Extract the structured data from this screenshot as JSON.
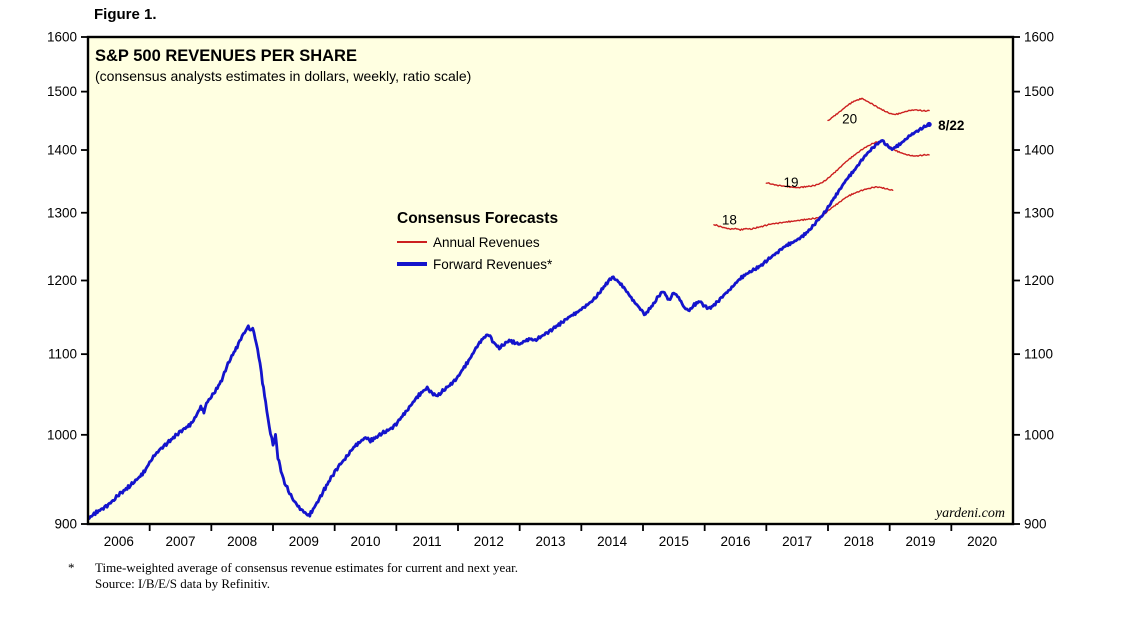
{
  "figure": {
    "label": "Figure 1."
  },
  "chart": {
    "title": "S&P 500 REVENUES PER SHARE",
    "subtitle": "(consensus analysts estimates in dollars, weekly, ratio scale)",
    "watermark": "yardeni.com",
    "legend": {
      "heading": "Consensus Forecasts",
      "items": [
        {
          "label": "Annual Revenues",
          "color": "#CC2020"
        },
        {
          "label": "Forward Revenues*",
          "color": "#1414CC"
        }
      ]
    },
    "colors": {
      "plot_background": "#FFFFE1",
      "border": "#000000",
      "axis_text": "#000000",
      "red": "#CC2020",
      "blue": "#1414CC"
    }
  },
  "chart_data": {
    "type": "line",
    "x_axis": {
      "unit": "decimal_year",
      "start": 2006,
      "end": 2021,
      "year_labels": [
        "2006",
        "2007",
        "2008",
        "2009",
        "2010",
        "2011",
        "2012",
        "2013",
        "2014",
        "2015",
        "2016",
        "2017",
        "2018",
        "2019",
        "2020"
      ]
    },
    "y_axis": {
      "min": 900,
      "max": 1600,
      "tick_step": 100,
      "scale": "ratio (log)",
      "sides": "both"
    },
    "annotations": [
      {
        "text": "18",
        "t": 2016.4,
        "v": 1289,
        "color": "#CC2020",
        "anchor": "middle",
        "bold": false
      },
      {
        "text": "19",
        "t": 2017.4,
        "v": 1347,
        "color": "#CC2020",
        "anchor": "middle",
        "bold": false
      },
      {
        "text": "20",
        "t": 2018.35,
        "v": 1452,
        "color": "#CC2020",
        "anchor": "middle",
        "bold": false
      },
      {
        "text": "8/22",
        "t": 2019.72,
        "v": 1441,
        "color": "#1414CC",
        "anchor": "start",
        "bold": true,
        "dx": 4
      }
    ],
    "series": [
      {
        "name": "Annual Revenues 2018 estimate",
        "color": "#CC2020",
        "width": 1.4,
        "points": [
          [
            2016.15,
            1282
          ],
          [
            2016.25,
            1279
          ],
          [
            2016.33,
            1277
          ],
          [
            2016.42,
            1275
          ],
          [
            2016.5,
            1276
          ],
          [
            2016.58,
            1274
          ],
          [
            2016.67,
            1276
          ],
          [
            2016.75,
            1275
          ],
          [
            2016.83,
            1277
          ],
          [
            2016.92,
            1279
          ],
          [
            2017.0,
            1281
          ],
          [
            2017.08,
            1283
          ],
          [
            2017.17,
            1284
          ],
          [
            2017.25,
            1285
          ],
          [
            2017.33,
            1286
          ],
          [
            2017.42,
            1287
          ],
          [
            2017.5,
            1288
          ],
          [
            2017.58,
            1289
          ],
          [
            2017.67,
            1290
          ],
          [
            2017.75,
            1291
          ],
          [
            2017.83,
            1292
          ],
          [
            2017.92,
            1296
          ],
          [
            2018.0,
            1303
          ],
          [
            2018.08,
            1309
          ],
          [
            2018.17,
            1315
          ],
          [
            2018.25,
            1321
          ],
          [
            2018.33,
            1326
          ],
          [
            2018.42,
            1330
          ],
          [
            2018.5,
            1333
          ],
          [
            2018.58,
            1336
          ],
          [
            2018.67,
            1338
          ],
          [
            2018.75,
            1340
          ],
          [
            2018.83,
            1340
          ],
          [
            2018.92,
            1338
          ],
          [
            2019.0,
            1336
          ],
          [
            2019.05,
            1335
          ]
        ]
      },
      {
        "name": "Annual Revenues 2019 estimate",
        "color": "#CC2020",
        "width": 1.4,
        "points": [
          [
            2017.0,
            1347
          ],
          [
            2017.08,
            1345
          ],
          [
            2017.17,
            1343
          ],
          [
            2017.25,
            1342
          ],
          [
            2017.33,
            1341
          ],
          [
            2017.42,
            1340
          ],
          [
            2017.5,
            1339
          ],
          [
            2017.58,
            1340
          ],
          [
            2017.67,
            1341
          ],
          [
            2017.75,
            1342
          ],
          [
            2017.83,
            1344
          ],
          [
            2017.92,
            1348
          ],
          [
            2018.0,
            1354
          ],
          [
            2018.08,
            1361
          ],
          [
            2018.17,
            1369
          ],
          [
            2018.25,
            1377
          ],
          [
            2018.33,
            1384
          ],
          [
            2018.42,
            1391
          ],
          [
            2018.5,
            1397
          ],
          [
            2018.58,
            1403
          ],
          [
            2018.67,
            1408
          ],
          [
            2018.75,
            1412
          ],
          [
            2018.83,
            1414
          ],
          [
            2018.88,
            1415
          ],
          [
            2018.92,
            1412
          ],
          [
            2019.0,
            1406
          ],
          [
            2019.08,
            1400
          ],
          [
            2019.17,
            1396
          ],
          [
            2019.25,
            1393
          ],
          [
            2019.33,
            1391
          ],
          [
            2019.42,
            1390
          ],
          [
            2019.5,
            1391
          ],
          [
            2019.58,
            1392
          ],
          [
            2019.64,
            1392
          ]
        ]
      },
      {
        "name": "Annual Revenues 2020 estimate",
        "color": "#CC2020",
        "width": 1.4,
        "points": [
          [
            2018.0,
            1449
          ],
          [
            2018.08,
            1456
          ],
          [
            2018.17,
            1463
          ],
          [
            2018.25,
            1470
          ],
          [
            2018.33,
            1477
          ],
          [
            2018.42,
            1483
          ],
          [
            2018.5,
            1486
          ],
          [
            2018.55,
            1488
          ],
          [
            2018.58,
            1486
          ],
          [
            2018.67,
            1481
          ],
          [
            2018.75,
            1476
          ],
          [
            2018.83,
            1471
          ],
          [
            2018.92,
            1466
          ],
          [
            2019.0,
            1462
          ],
          [
            2019.08,
            1460
          ],
          [
            2019.17,
            1462
          ],
          [
            2019.25,
            1465
          ],
          [
            2019.33,
            1467
          ],
          [
            2019.42,
            1468
          ],
          [
            2019.5,
            1467
          ],
          [
            2019.58,
            1466
          ],
          [
            2019.64,
            1467
          ]
        ]
      },
      {
        "name": "Forward Revenues",
        "color": "#1414CC",
        "width": 2.8,
        "endpoint_dot": true,
        "points": [
          [
            2006.0,
            905
          ],
          [
            2006.08,
            910
          ],
          [
            2006.17,
            914
          ],
          [
            2006.25,
            917
          ],
          [
            2006.33,
            921
          ],
          [
            2006.42,
            926
          ],
          [
            2006.5,
            932
          ],
          [
            2006.58,
            936
          ],
          [
            2006.67,
            941
          ],
          [
            2006.75,
            946
          ],
          [
            2006.83,
            951
          ],
          [
            2006.92,
            958
          ],
          [
            2007.0,
            968
          ],
          [
            2007.08,
            976
          ],
          [
            2007.17,
            983
          ],
          [
            2007.25,
            988
          ],
          [
            2007.33,
            993
          ],
          [
            2007.42,
            999
          ],
          [
            2007.5,
            1004
          ],
          [
            2007.58,
            1008
          ],
          [
            2007.67,
            1013
          ],
          [
            2007.75,
            1022
          ],
          [
            2007.83,
            1034
          ],
          [
            2007.88,
            1027
          ],
          [
            2007.92,
            1038
          ],
          [
            2008.0,
            1046
          ],
          [
            2008.08,
            1055
          ],
          [
            2008.17,
            1067
          ],
          [
            2008.25,
            1084
          ],
          [
            2008.33,
            1097
          ],
          [
            2008.42,
            1110
          ],
          [
            2008.5,
            1124
          ],
          [
            2008.56,
            1131
          ],
          [
            2008.6,
            1138
          ],
          [
            2008.63,
            1130
          ],
          [
            2008.67,
            1135
          ],
          [
            2008.71,
            1121
          ],
          [
            2008.75,
            1106
          ],
          [
            2008.79,
            1088
          ],
          [
            2008.83,
            1064
          ],
          [
            2008.88,
            1040
          ],
          [
            2008.92,
            1018
          ],
          [
            2008.96,
            1002
          ],
          [
            2009.0,
            988
          ],
          [
            2009.04,
            999
          ],
          [
            2009.08,
            974
          ],
          [
            2009.13,
            959
          ],
          [
            2009.17,
            948
          ],
          [
            2009.25,
            936
          ],
          [
            2009.33,
            926
          ],
          [
            2009.42,
            918
          ],
          [
            2009.5,
            913
          ],
          [
            2009.58,
            909
          ],
          [
            2009.63,
            913
          ],
          [
            2009.67,
            918
          ],
          [
            2009.75,
            927
          ],
          [
            2009.83,
            937
          ],
          [
            2009.92,
            948
          ],
          [
            2010.0,
            957
          ],
          [
            2010.08,
            965
          ],
          [
            2010.17,
            972
          ],
          [
            2010.25,
            980
          ],
          [
            2010.33,
            987
          ],
          [
            2010.42,
            992
          ],
          [
            2010.5,
            997
          ],
          [
            2010.58,
            993
          ],
          [
            2010.67,
            997
          ],
          [
            2010.75,
            1001
          ],
          [
            2010.83,
            1004
          ],
          [
            2010.92,
            1008
          ],
          [
            2011.0,
            1013
          ],
          [
            2011.08,
            1021
          ],
          [
            2011.17,
            1029
          ],
          [
            2011.25,
            1037
          ],
          [
            2011.33,
            1045
          ],
          [
            2011.42,
            1052
          ],
          [
            2011.5,
            1057
          ],
          [
            2011.58,
            1050
          ],
          [
            2011.67,
            1047
          ],
          [
            2011.75,
            1053
          ],
          [
            2011.83,
            1058
          ],
          [
            2011.92,
            1064
          ],
          [
            2012.0,
            1071
          ],
          [
            2012.08,
            1081
          ],
          [
            2012.17,
            1091
          ],
          [
            2012.25,
            1102
          ],
          [
            2012.33,
            1113
          ],
          [
            2012.42,
            1122
          ],
          [
            2012.5,
            1126
          ],
          [
            2012.58,
            1115
          ],
          [
            2012.67,
            1108
          ],
          [
            2012.75,
            1113
          ],
          [
            2012.83,
            1118
          ],
          [
            2012.92,
            1115
          ],
          [
            2013.0,
            1113
          ],
          [
            2013.08,
            1117
          ],
          [
            2013.17,
            1120
          ],
          [
            2013.25,
            1118
          ],
          [
            2013.33,
            1122
          ],
          [
            2013.42,
            1127
          ],
          [
            2013.5,
            1131
          ],
          [
            2013.58,
            1136
          ],
          [
            2013.67,
            1141
          ],
          [
            2013.75,
            1146
          ],
          [
            2013.83,
            1151
          ],
          [
            2013.92,
            1155
          ],
          [
            2014.0,
            1160
          ],
          [
            2014.08,
            1165
          ],
          [
            2014.17,
            1171
          ],
          [
            2014.25,
            1178
          ],
          [
            2014.33,
            1187
          ],
          [
            2014.42,
            1197
          ],
          [
            2014.5,
            1205
          ],
          [
            2014.58,
            1200
          ],
          [
            2014.67,
            1192
          ],
          [
            2014.75,
            1183
          ],
          [
            2014.83,
            1173
          ],
          [
            2014.92,
            1164
          ],
          [
            2015.0,
            1156
          ],
          [
            2015.04,
            1152
          ],
          [
            2015.08,
            1158
          ],
          [
            2015.17,
            1167
          ],
          [
            2015.25,
            1178
          ],
          [
            2015.33,
            1185
          ],
          [
            2015.42,
            1172
          ],
          [
            2015.5,
            1183
          ],
          [
            2015.58,
            1176
          ],
          [
            2015.67,
            1162
          ],
          [
            2015.75,
            1158
          ],
          [
            2015.83,
            1166
          ],
          [
            2015.92,
            1171
          ],
          [
            2016.0,
            1164
          ],
          [
            2016.08,
            1161
          ],
          [
            2016.17,
            1167
          ],
          [
            2016.25,
            1174
          ],
          [
            2016.33,
            1181
          ],
          [
            2016.42,
            1188
          ],
          [
            2016.5,
            1196
          ],
          [
            2016.58,
            1203
          ],
          [
            2016.67,
            1209
          ],
          [
            2016.75,
            1213
          ],
          [
            2016.83,
            1217
          ],
          [
            2016.92,
            1222
          ],
          [
            2017.0,
            1228
          ],
          [
            2017.08,
            1234
          ],
          [
            2017.17,
            1240
          ],
          [
            2017.25,
            1246
          ],
          [
            2017.33,
            1251
          ],
          [
            2017.42,
            1255
          ],
          [
            2017.5,
            1259
          ],
          [
            2017.58,
            1264
          ],
          [
            2017.67,
            1271
          ],
          [
            2017.75,
            1279
          ],
          [
            2017.83,
            1288
          ],
          [
            2017.92,
            1297
          ],
          [
            2018.0,
            1308
          ],
          [
            2018.08,
            1320
          ],
          [
            2018.17,
            1333
          ],
          [
            2018.25,
            1345
          ],
          [
            2018.33,
            1356
          ],
          [
            2018.42,
            1366
          ],
          [
            2018.5,
            1377
          ],
          [
            2018.58,
            1388
          ],
          [
            2018.67,
            1398
          ],
          [
            2018.75,
            1406
          ],
          [
            2018.83,
            1413
          ],
          [
            2018.88,
            1416
          ],
          [
            2018.92,
            1411
          ],
          [
            2019.0,
            1404
          ],
          [
            2019.04,
            1401
          ],
          [
            2019.08,
            1404
          ],
          [
            2019.17,
            1410
          ],
          [
            2019.25,
            1417
          ],
          [
            2019.33,
            1424
          ],
          [
            2019.42,
            1430
          ],
          [
            2019.5,
            1435
          ],
          [
            2019.58,
            1440
          ],
          [
            2019.64,
            1443
          ]
        ]
      }
    ]
  },
  "footnote": {
    "marker": "*",
    "line1": "Time-weighted average of consensus revenue estimates for current and next year.",
    "line2": "Source: I/B/E/S data by Refinitiv."
  }
}
